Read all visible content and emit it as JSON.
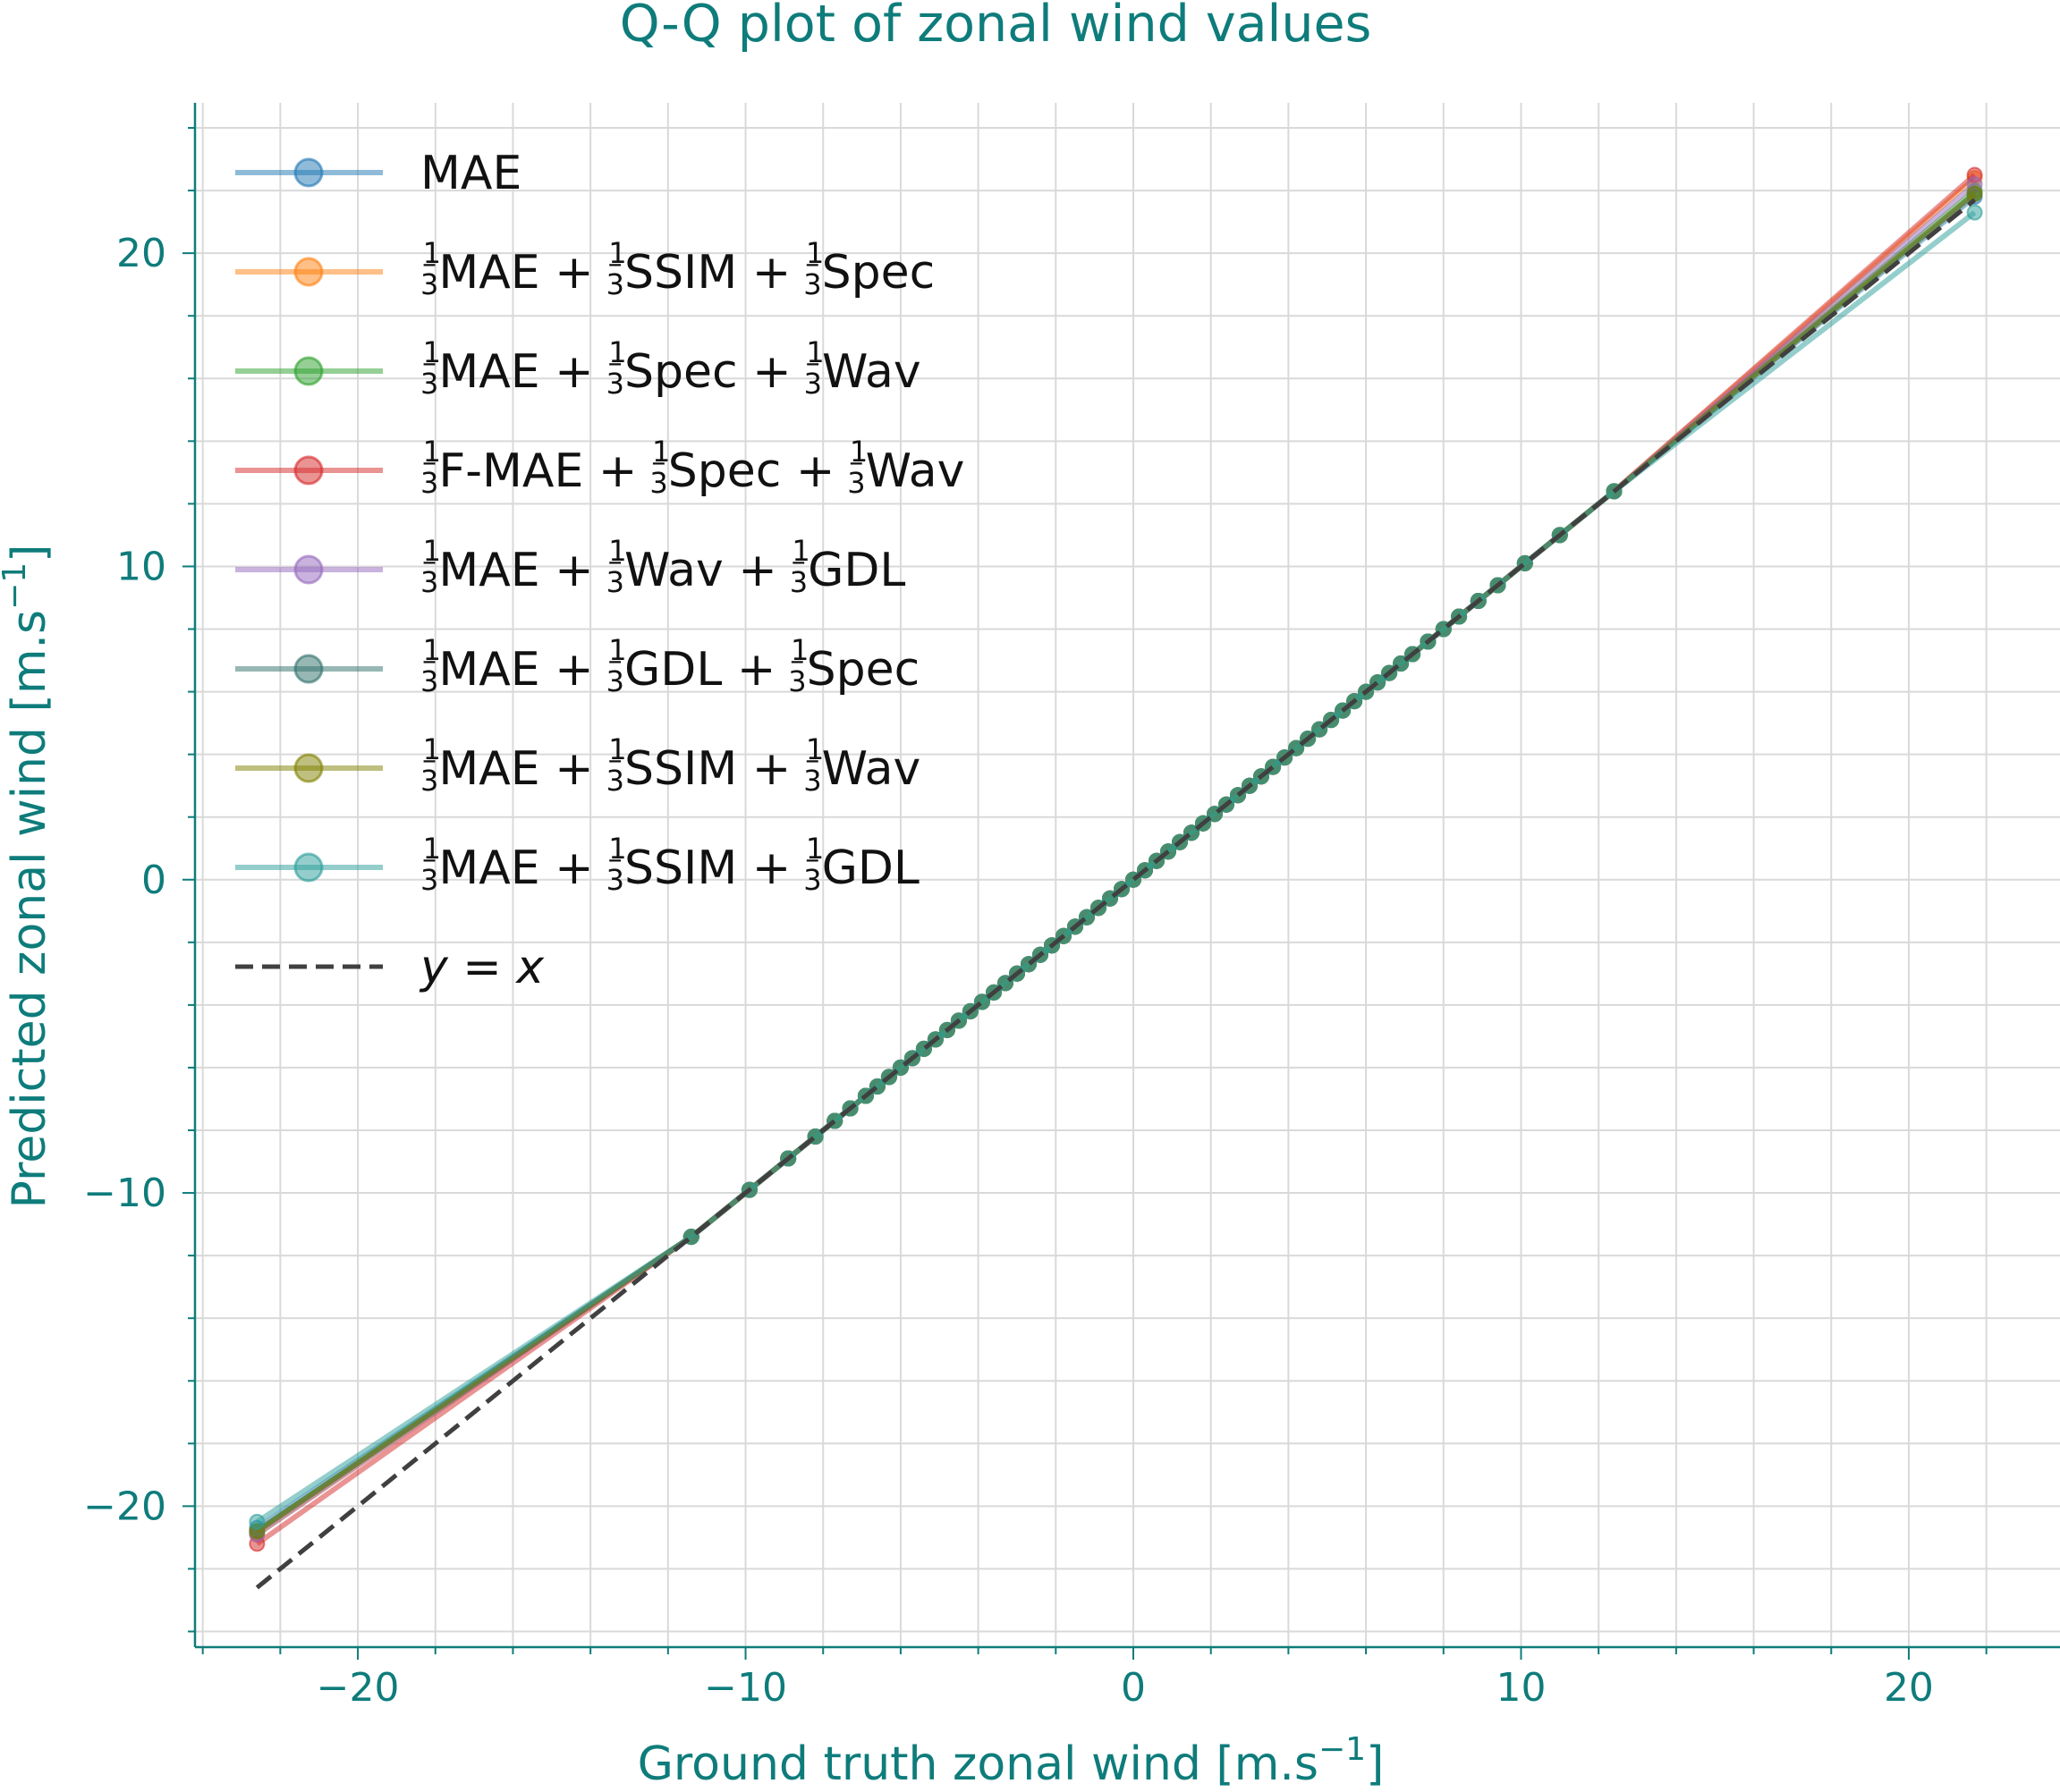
{
  "chart_data": {
    "type": "line",
    "title": "Q-Q plot of zonal wind values",
    "xlabel": "Ground truth zonal wind [m.s",
    "ylabel": "Predicted zonal wind [m.s",
    "unit_exponent": "−1",
    "axis_color": "#0e7c7b",
    "xlim": [
      -24.2,
      23.9
    ],
    "ylim": [
      -24.5,
      24.8
    ],
    "xticks": [
      -20,
      -10,
      0,
      10,
      20
    ],
    "xtick_labels": [
      "−20",
      "−10",
      "0",
      "10",
      "20"
    ],
    "yticks": [
      -20,
      -10,
      0,
      10,
      20
    ],
    "ytick_labels": [
      "−20",
      "−10",
      "0",
      "10",
      "20"
    ],
    "x_minor_step": 2,
    "y_minor_step": 2,
    "grid": true,
    "legend_position": "top-left",
    "reference_line": {
      "label": "y = x",
      "color": "#404040",
      "style": "dashed",
      "x_range": [
        -22.6,
        21.7
      ]
    },
    "quantiles_x": [
      -22.6,
      -11.4,
      -9.9,
      -8.9,
      -8.2,
      -7.7,
      -7.3,
      -6.9,
      -6.6,
      -6.3,
      -6.0,
      -5.7,
      -5.4,
      -5.1,
      -4.8,
      -4.5,
      -4.2,
      -3.9,
      -3.6,
      -3.3,
      -3.0,
      -2.7,
      -2.4,
      -2.1,
      -1.8,
      -1.5,
      -1.2,
      -0.9,
      -0.6,
      -0.3,
      0.0,
      0.3,
      0.6,
      0.9,
      1.2,
      1.5,
      1.8,
      2.1,
      2.4,
      2.7,
      3.0,
      3.3,
      3.6,
      3.9,
      4.2,
      4.5,
      4.8,
      5.1,
      5.4,
      5.7,
      6.0,
      6.3,
      6.6,
      6.9,
      7.2,
      7.6,
      8.0,
      8.4,
      8.9,
      9.4,
      10.1,
      11.0,
      12.4,
      21.7
    ],
    "series": [
      {
        "name": "MAE",
        "color": "#1f77b4",
        "end_values": [
          -20.7,
          21.8
        ]
      },
      {
        "name": "⅓MAE + ⅓SSIM + ⅓Spec",
        "color": "#ff7f0e",
        "end_values": [
          -20.9,
          22.4
        ]
      },
      {
        "name": "⅓MAE + ⅓Spec + ⅓Wav",
        "color": "#2ca02c",
        "end_values": [
          -20.8,
          22.0
        ]
      },
      {
        "name": "⅓F-MAE + ⅓Spec + ⅓Wav",
        "color": "#d62728",
        "end_values": [
          -21.2,
          22.5
        ]
      },
      {
        "name": "⅓MAE + ⅓Wav + ⅓GDL",
        "color": "#9467bd",
        "end_values": [
          -20.9,
          22.2
        ]
      },
      {
        "name": "⅓MAE + ⅓GDL + ⅓Spec",
        "color": "#2f6f6a",
        "end_values": [
          -20.8,
          21.9
        ]
      },
      {
        "name": "⅓MAE + ⅓SSIM + ⅓Wav",
        "color": "#808000",
        "end_values": [
          -20.8,
          21.9
        ]
      },
      {
        "name": "⅓MAE + ⅓SSIM + ⅓GDL",
        "color": "#2a9d9a",
        "end_values": [
          -20.5,
          21.3
        ]
      }
    ],
    "legend": [
      {
        "parts": [
          {
            "t": "MAE"
          }
        ]
      },
      {
        "parts": [
          {
            "f": "1|3"
          },
          {
            "t": "MAE + "
          },
          {
            "f": "1|3"
          },
          {
            "t": "SSIM + "
          },
          {
            "f": "1|3"
          },
          {
            "t": "Spec"
          }
        ]
      },
      {
        "parts": [
          {
            "f": "1|3"
          },
          {
            "t": "MAE + "
          },
          {
            "f": "1|3"
          },
          {
            "t": "Spec + "
          },
          {
            "f": "1|3"
          },
          {
            "t": "Wav"
          }
        ]
      },
      {
        "parts": [
          {
            "f": "1|3"
          },
          {
            "t": "F-MAE + "
          },
          {
            "f": "1|3"
          },
          {
            "t": "Spec + "
          },
          {
            "f": "1|3"
          },
          {
            "t": "Wav"
          }
        ]
      },
      {
        "parts": [
          {
            "f": "1|3"
          },
          {
            "t": "MAE + "
          },
          {
            "f": "1|3"
          },
          {
            "t": "Wav + "
          },
          {
            "f": "1|3"
          },
          {
            "t": "GDL"
          }
        ]
      },
      {
        "parts": [
          {
            "f": "1|3"
          },
          {
            "t": "MAE + "
          },
          {
            "f": "1|3"
          },
          {
            "t": "GDL + "
          },
          {
            "f": "1|3"
          },
          {
            "t": "Spec"
          }
        ]
      },
      {
        "parts": [
          {
            "f": "1|3"
          },
          {
            "t": "MAE + "
          },
          {
            "f": "1|3"
          },
          {
            "t": "SSIM + "
          },
          {
            "f": "1|3"
          },
          {
            "t": "Wav"
          }
        ]
      },
      {
        "parts": [
          {
            "f": "1|3"
          },
          {
            "t": "MAE + "
          },
          {
            "f": "1|3"
          },
          {
            "t": "SSIM + "
          },
          {
            "f": "1|3"
          },
          {
            "t": "GDL"
          }
        ]
      },
      {
        "parts": [
          {
            "i": "y"
          },
          {
            "t": " = "
          },
          {
            "i": "x"
          }
        ]
      }
    ]
  }
}
